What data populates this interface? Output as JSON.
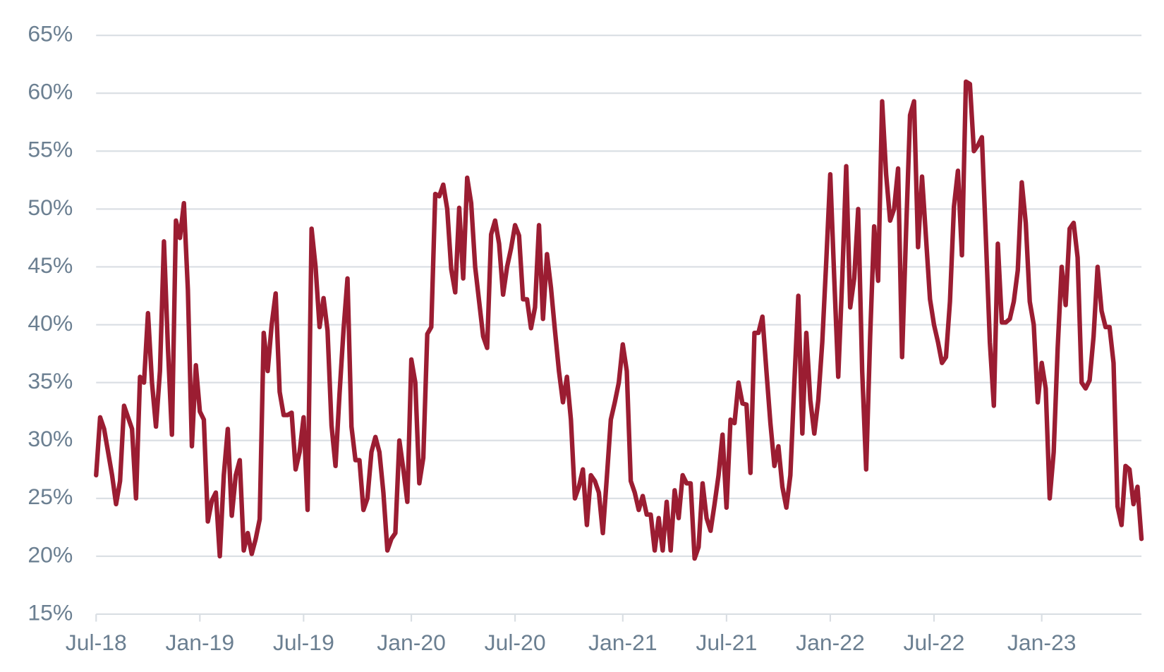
{
  "chart_data": {
    "type": "line",
    "categories": [
      "Jul-18",
      null,
      null,
      null,
      null,
      null,
      null,
      null,
      null,
      null,
      null,
      null,
      null,
      null,
      null,
      null,
      null,
      null,
      null,
      null,
      null,
      null,
      null,
      null,
      null,
      null,
      "Jan-19",
      null,
      null,
      null,
      null,
      null,
      null,
      null,
      null,
      null,
      null,
      null,
      null,
      null,
      null,
      null,
      null,
      null,
      null,
      null,
      null,
      null,
      null,
      null,
      null,
      null,
      "Jul-19",
      null,
      null,
      null,
      null,
      null,
      null,
      null,
      null,
      null,
      null,
      null,
      null,
      null,
      null,
      null,
      null,
      null,
      null,
      null,
      null,
      null,
      null,
      null,
      null,
      null,
      null,
      "Jan-20",
      null,
      null,
      null,
      null,
      null,
      null,
      null,
      null,
      null,
      null,
      null,
      null,
      null,
      null,
      null,
      null,
      null,
      null,
      null,
      null,
      null,
      null,
      null,
      null,
      null,
      "Jul-20",
      null,
      null,
      null,
      null,
      null,
      null,
      null,
      null,
      null,
      null,
      null,
      null,
      null,
      null,
      null,
      null,
      null,
      null,
      null,
      null,
      null,
      null,
      null,
      null,
      null,
      null,
      "Jan-21",
      null,
      null,
      null,
      null,
      null,
      null,
      null,
      null,
      null,
      null,
      null,
      null,
      null,
      null,
      null,
      null,
      null,
      null,
      null,
      null,
      null,
      null,
      null,
      null,
      null,
      "Jul-21",
      null,
      null,
      null,
      null,
      null,
      null,
      null,
      null,
      null,
      null,
      null,
      null,
      null,
      null,
      null,
      null,
      null,
      null,
      null,
      null,
      null,
      null,
      null,
      null,
      null,
      "Jan-22",
      null,
      null,
      null,
      null,
      null,
      null,
      null,
      null,
      null,
      null,
      null,
      null,
      null,
      null,
      null,
      null,
      null,
      null,
      null,
      null,
      null,
      null,
      null,
      null,
      null,
      "Jul-22",
      null,
      null,
      null,
      null,
      null,
      null,
      null,
      null,
      null,
      null,
      null,
      null,
      null,
      null,
      null,
      null,
      null,
      null,
      null,
      null,
      null,
      null,
      null,
      null,
      null,
      null,
      "Jan-23",
      null,
      null,
      null,
      null,
      null,
      null,
      null,
      null,
      null,
      null,
      null,
      null,
      null,
      null,
      null,
      null,
      null,
      null,
      null,
      null,
      null,
      null,
      null,
      null,
      null
    ],
    "values": [
      27,
      32,
      31,
      29,
      27,
      24.5,
      26.5,
      33,
      32,
      31,
      25,
      35.5,
      35,
      41,
      35,
      31.2,
      36,
      47.2,
      38,
      30.5,
      49,
      47.5,
      50.5,
      43,
      29.5,
      36.5,
      32.5,
      31.8,
      23,
      24.8,
      25.5,
      20,
      27,
      31,
      23.5,
      27,
      28.3,
      20.5,
      22,
      20.2,
      21.5,
      23.2,
      39.3,
      36,
      40,
      42.7,
      34.2,
      32.2,
      32.2,
      32.4,
      27.5,
      29,
      32,
      24,
      48.3,
      45,
      39.8,
      42.3,
      39.5,
      31.3,
      27.8,
      34,
      39.5,
      44,
      31.2,
      28.3,
      28.3,
      24,
      25,
      29,
      30.3,
      29,
      25.5,
      20.5,
      21.5,
      22,
      30,
      27.5,
      24.7,
      37,
      35,
      26.3,
      28.5,
      39.2,
      39.8,
      51.3,
      51.1,
      52.1,
      50,
      44.8,
      42.8,
      50.1,
      44,
      52.7,
      50.5,
      45,
      42,
      39,
      38,
      47.8,
      49,
      47,
      42.6,
      45,
      46.6,
      48.6,
      47.7,
      42.2,
      42.2,
      39.7,
      41.5,
      48.6,
      40.5,
      46.1,
      43.2,
      39.5,
      36,
      33.3,
      35.5,
      31.8,
      25,
      26,
      27.5,
      22.7,
      27,
      26.5,
      25.5,
      22,
      26.8,
      31.8,
      33.3,
      35,
      38.3,
      36,
      26.5,
      25.5,
      24,
      25.2,
      23.6,
      23.6,
      20.5,
      23.3,
      20.5,
      24.7,
      20.5,
      25.7,
      23.3,
      27,
      26.3,
      26.3,
      19.8,
      20.8,
      26.3,
      23.3,
      22.2,
      24.5,
      27,
      30.5,
      24.2,
      31.8,
      31.5,
      35,
      33.2,
      33.1,
      27.2,
      39.3,
      39.3,
      40.7,
      36,
      31.5,
      27.8,
      29.5,
      26,
      24.2,
      27,
      35,
      42.5,
      30.6,
      39.3,
      33.5,
      30.6,
      33.5,
      38.5,
      45.5,
      53,
      44,
      35.5,
      44,
      53.7,
      41.5,
      44,
      50,
      36,
      27.5,
      39,
      48.5,
      43.8,
      59.3,
      53,
      49,
      50,
      53.5,
      37.2,
      48,
      58.1,
      59.3,
      46.7,
      52.8,
      47.5,
      42.2,
      40,
      38.5,
      36.7,
      37.2,
      42,
      50.2,
      53.3,
      46,
      61,
      60.8,
      55,
      55.5,
      56.2,
      47.5,
      38.5,
      33,
      47,
      40.2,
      40.2,
      40.5,
      42,
      44.7,
      52.3,
      48.8,
      42,
      40,
      33.3,
      36.7,
      34.5,
      25,
      29,
      38,
      45,
      41.7,
      48.3,
      48.8,
      45.8,
      35,
      34.5,
      35.2,
      39,
      45,
      41.2,
      39.8,
      39.8,
      36.7,
      24.3,
      22.7,
      27.8,
      27.5,
      24.5,
      26,
      21.5
    ],
    "color": "#9b1d32",
    "ylim": [
      15,
      65
    ],
    "yticks": [
      {
        "value": 15,
        "label": "15%"
      },
      {
        "value": 20,
        "label": "20%"
      },
      {
        "value": 25,
        "label": "25%"
      },
      {
        "value": 30,
        "label": "30%"
      },
      {
        "value": 35,
        "label": "35%"
      },
      {
        "value": 40,
        "label": "40%"
      },
      {
        "value": 45,
        "label": "45%"
      },
      {
        "value": 50,
        "label": "50%"
      },
      {
        "value": 55,
        "label": "55%"
      },
      {
        "value": 60,
        "label": "60%"
      },
      {
        "value": 65,
        "label": "65%"
      }
    ],
    "grid": true
  }
}
